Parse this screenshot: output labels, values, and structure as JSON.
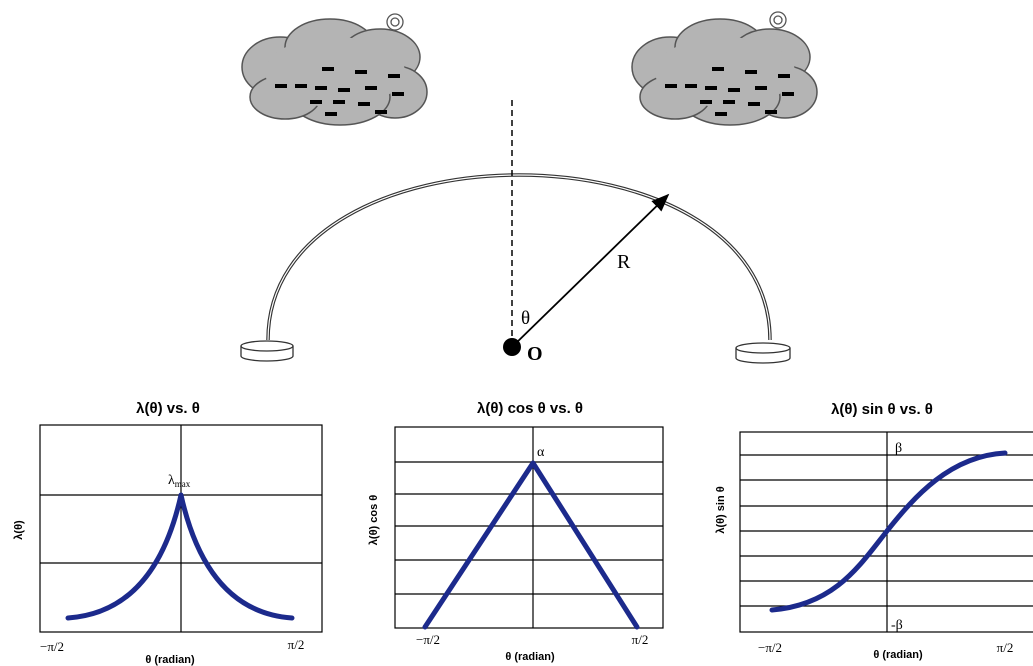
{
  "diagram": {
    "radius_label": "R",
    "angle_label": "θ",
    "origin_label": "O"
  },
  "plots": [
    {
      "title": "λ(θ)  vs. θ",
      "y_label": "λ(θ)",
      "x_label": "θ (radian)",
      "x_ticks": [
        "−π/2",
        "π/2"
      ],
      "peak_label": {
        "base": "λ",
        "subscript": "max"
      }
    },
    {
      "title": "λ(θ) cos θ vs. θ",
      "y_label": "λ(θ) cos θ",
      "x_label": "θ (radian)",
      "x_ticks": [
        "−π/2",
        "π/2"
      ],
      "peak_label": "α"
    },
    {
      "title": "λ(θ) sin θ vs. θ",
      "y_label": "λ(θ) sin θ",
      "x_label": "θ (radian)",
      "x_ticks": [
        "−π/2",
        "π/2"
      ],
      "top_label": "β",
      "bottom_label": "-β"
    }
  ]
}
